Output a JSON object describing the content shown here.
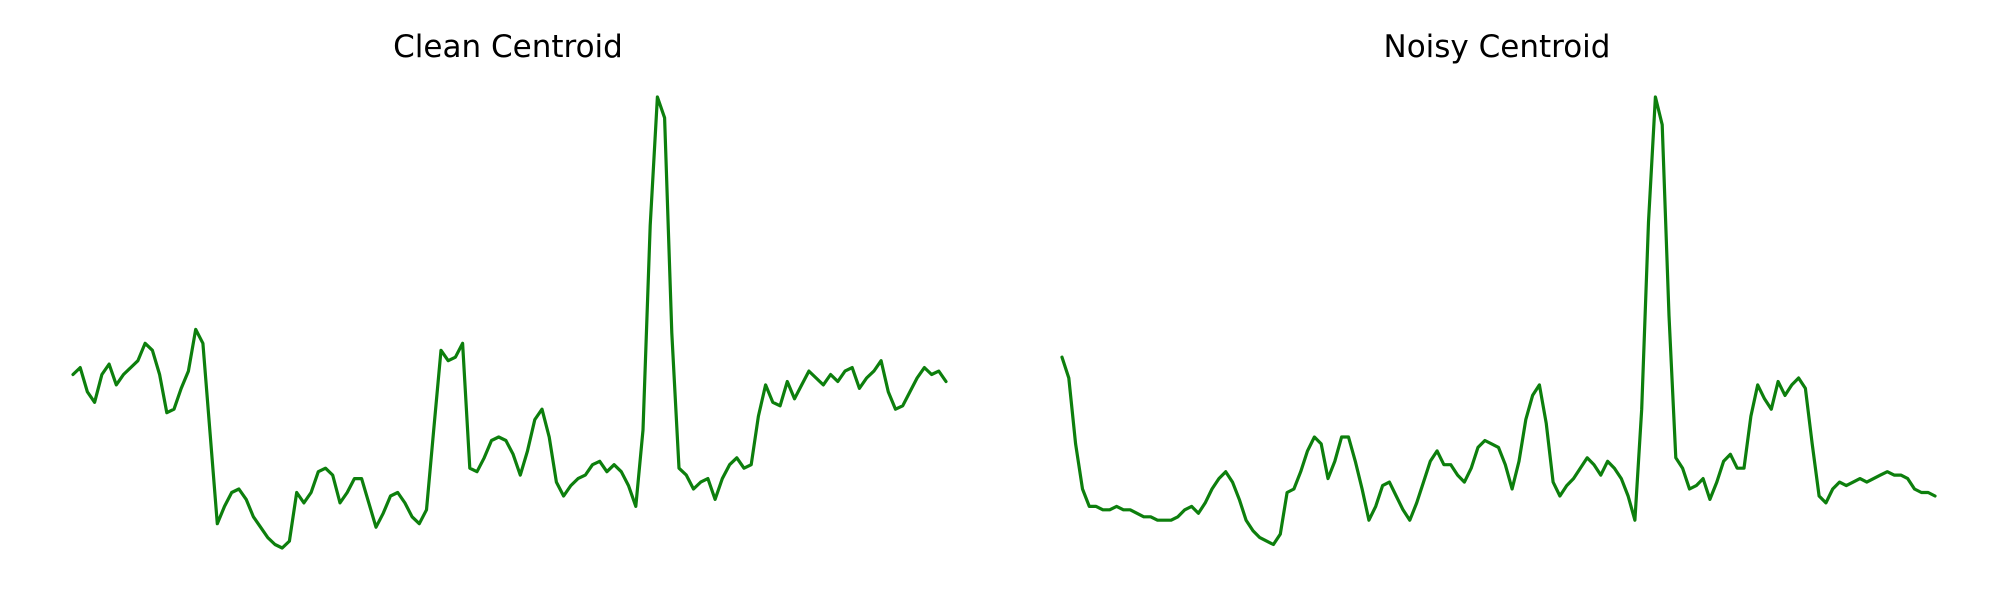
{
  "colors": {
    "line": "#0d7f0d",
    "background": "#ffffff"
  },
  "chart_data": [
    {
      "type": "line",
      "title": "Clean Centroid",
      "xlabel": "",
      "ylabel": "",
      "axes_visible": false,
      "grid": false,
      "series": [
        {
          "values": [
            0.4,
            0.42,
            0.35,
            0.32,
            0.4,
            0.43,
            0.37,
            0.4,
            0.42,
            0.44,
            0.49,
            0.47,
            0.4,
            0.29,
            0.3,
            0.36,
            0.41,
            0.53,
            0.49,
            0.23,
            -0.03,
            0.02,
            0.06,
            0.07,
            0.04,
            -0.01,
            -0.04,
            -0.07,
            -0.09,
            -0.1,
            -0.08,
            0.06,
            0.03,
            0.06,
            0.12,
            0.13,
            0.11,
            0.03,
            0.06,
            0.1,
            0.1,
            0.03,
            -0.04,
            0.0,
            0.05,
            0.06,
            0.03,
            -0.01,
            -0.03,
            0.01,
            0.24,
            0.47,
            0.44,
            0.45,
            0.49,
            0.13,
            0.12,
            0.16,
            0.21,
            0.22,
            0.21,
            0.17,
            0.11,
            0.18,
            0.27,
            0.3,
            0.22,
            0.09,
            0.05,
            0.08,
            0.1,
            0.11,
            0.14,
            0.15,
            0.12,
            0.14,
            0.12,
            0.08,
            0.02,
            0.24,
            0.83,
            1.2,
            1.14,
            0.52,
            0.13,
            0.11,
            0.07,
            0.09,
            0.1,
            0.04,
            0.1,
            0.14,
            0.16,
            0.13,
            0.14,
            0.28,
            0.37,
            0.32,
            0.31,
            0.38,
            0.33,
            0.37,
            0.41,
            0.39,
            0.37,
            0.4,
            0.38,
            0.41,
            0.42,
            0.36,
            0.39,
            0.41,
            0.44,
            0.35,
            0.3,
            0.31,
            0.35,
            0.39,
            0.42,
            0.4,
            0.41,
            0.38
          ]
        }
      ]
    },
    {
      "type": "line",
      "title": "Noisy Centroid",
      "xlabel": "",
      "ylabel": "",
      "axes_visible": false,
      "grid": false,
      "series": [
        {
          "values": [
            0.45,
            0.39,
            0.2,
            0.07,
            0.02,
            0.02,
            0.01,
            0.01,
            0.02,
            0.01,
            0.01,
            0.0,
            -0.01,
            -0.01,
            -0.02,
            -0.02,
            -0.02,
            -0.01,
            0.01,
            0.02,
            0.0,
            0.03,
            0.07,
            0.1,
            0.12,
            0.09,
            0.04,
            -0.02,
            -0.05,
            -0.07,
            -0.08,
            -0.09,
            -0.06,
            0.06,
            0.07,
            0.12,
            0.18,
            0.22,
            0.2,
            0.1,
            0.15,
            0.22,
            0.22,
            0.15,
            0.07,
            -0.02,
            0.02,
            0.08,
            0.09,
            0.05,
            0.01,
            -0.02,
            0.03,
            0.09,
            0.15,
            0.18,
            0.14,
            0.14,
            0.11,
            0.09,
            0.13,
            0.19,
            0.21,
            0.2,
            0.19,
            0.14,
            0.07,
            0.15,
            0.27,
            0.34,
            0.37,
            0.26,
            0.09,
            0.05,
            0.08,
            0.1,
            0.13,
            0.16,
            0.14,
            0.11,
            0.15,
            0.13,
            0.1,
            0.05,
            -0.02,
            0.3,
            0.84,
            1.2,
            1.12,
            0.57,
            0.16,
            0.13,
            0.07,
            0.08,
            0.1,
            0.04,
            0.09,
            0.15,
            0.17,
            0.13,
            0.13,
            0.28,
            0.37,
            0.33,
            0.3,
            0.38,
            0.34,
            0.37,
            0.39,
            0.36,
            0.2,
            0.05,
            0.03,
            0.07,
            0.09,
            0.08,
            0.09,
            0.1,
            0.09,
            0.1,
            0.11,
            0.12,
            0.11,
            0.11,
            0.1,
            0.07,
            0.06,
            0.06,
            0.05
          ]
        }
      ]
    }
  ]
}
